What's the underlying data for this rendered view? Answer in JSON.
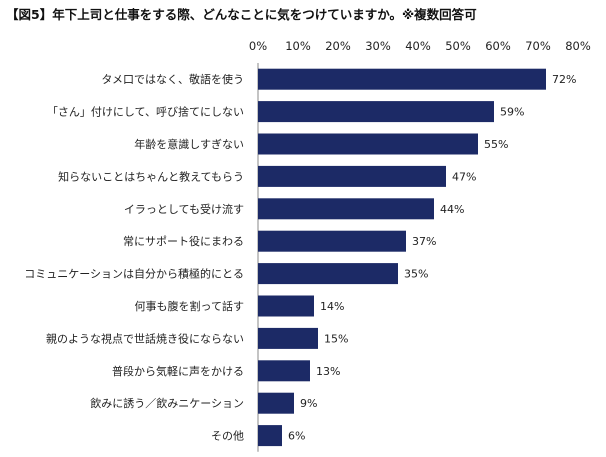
{
  "title": "【図5】年下上司と仕事をする際、どんなことに気をつけていますか。※複数回答可",
  "chart_data": {
    "type": "bar",
    "orientation": "horizontal",
    "bar_color": "#1c2a66",
    "categories": [
      "タメ口ではなく、敬語を使う",
      "「さん」付けにして、呼び捨てにしない",
      "年齢を意識しすぎない",
      "知らないことはちゃんと教えてもらう",
      "イラっとしても受け流す",
      "常にサポート役にまわる",
      "コミュニケーションは自分から積極的にとる",
      "何事も腹を割って話す",
      "親のような視点で世話焼き役にならない",
      "普段から気軽に声をかける",
      "飲みに誘う／飲みニケーション",
      "その他"
    ],
    "values": [
      72,
      59,
      55,
      47,
      44,
      37,
      35,
      14,
      15,
      13,
      9,
      6
    ],
    "value_labels": [
      "72%",
      "59%",
      "55%",
      "47%",
      "44%",
      "37%",
      "35%",
      "14%",
      "15%",
      "13%",
      "9%",
      "6%"
    ],
    "xlim": [
      0,
      80
    ],
    "x_ticks": [
      "0%",
      "10%",
      "20%",
      "30%",
      "40%",
      "50%",
      "60%",
      "70%",
      "80%"
    ],
    "axis_position": "top",
    "grid": false
  }
}
